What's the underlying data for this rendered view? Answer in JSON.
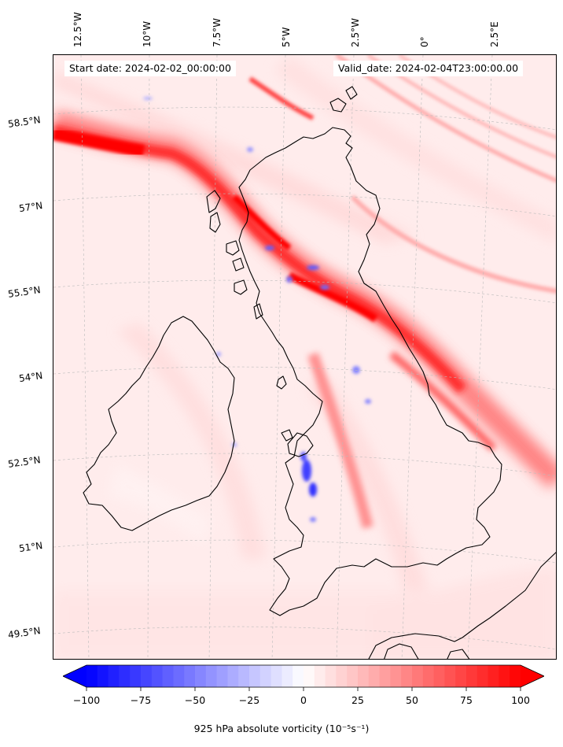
{
  "header": {
    "start_date": "Start date: 2024-02-02_00:00:00",
    "valid_date": "Valid_date: 2024-02-04T23:00:00.00"
  },
  "longitude_labels": [
    "12.5°W",
    "10°W",
    "7.5°W",
    "5°W",
    "2.5°W",
    "0°",
    "2.5°E"
  ],
  "latitude_labels": [
    "58.5°N",
    "57°N",
    "55.5°N",
    "54°N",
    "52.5°N",
    "51°N",
    "49.5°N"
  ],
  "colorbar": {
    "ticks": [
      "−100",
      "−75",
      "−50",
      "−25",
      "0",
      "25",
      "50",
      "75",
      "100"
    ],
    "label": "925 hPa absolute vorticity (10⁻⁵s⁻¹)",
    "min": -100,
    "max": 100,
    "colors": {
      "negative": "#0000ff",
      "zero": "#ffffff",
      "positive": "#ff0000"
    },
    "extend": "both"
  },
  "colors": {
    "background_field": "#ffecec",
    "coastline": "#000000",
    "gridline": "#bbbbbb"
  }
}
